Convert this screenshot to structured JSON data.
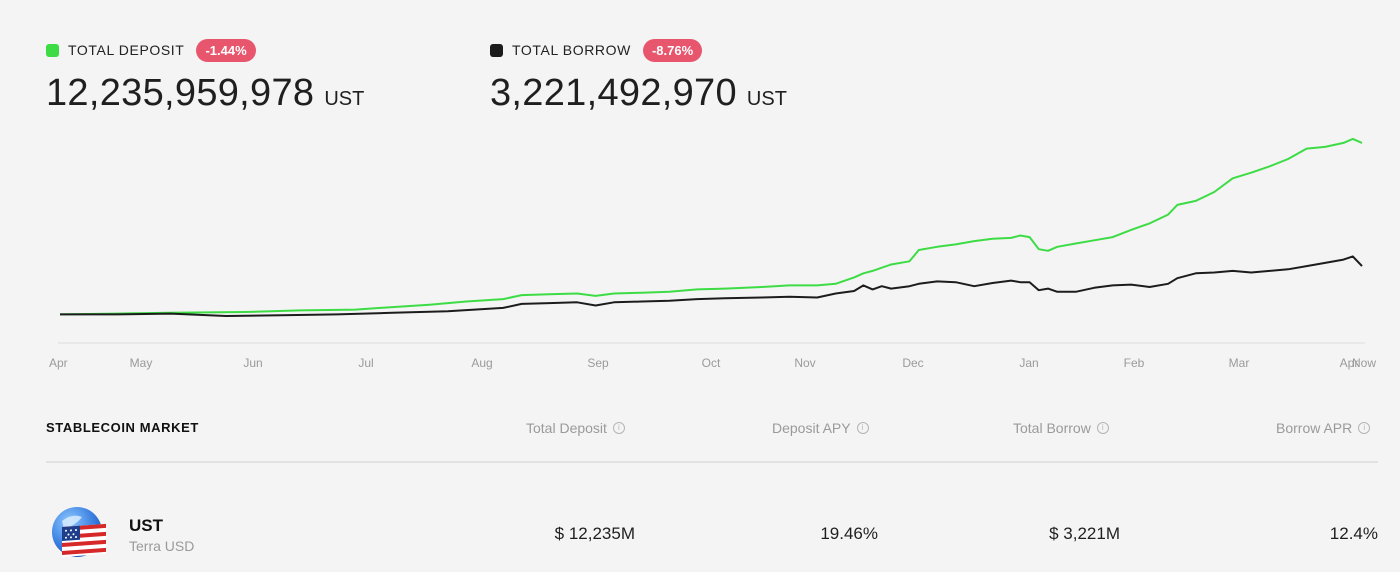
{
  "summary": {
    "deposit": {
      "label": "TOTAL DEPOSIT",
      "change": "-1.44%",
      "value": "12,235,959,978",
      "unit": "UST",
      "color": "#3ddc45"
    },
    "borrow": {
      "label": "TOTAL BORROW",
      "change": "-8.76%",
      "value": "3,221,492,970",
      "unit": "UST",
      "color": "#1c1c1c"
    }
  },
  "chart_data": {
    "type": "line",
    "x_tick_labels": [
      "Apr",
      "May",
      "Jun",
      "Jul",
      "Aug",
      "Sep",
      "Oct",
      "Nov",
      "Dec",
      "Jan",
      "Feb",
      "Mar",
      "Apr",
      "Now"
    ],
    "series": [
      {
        "color": "#3ddc45",
        "points": [
          [
            0,
            0.2
          ],
          [
            6,
            0.3
          ],
          [
            12,
            0.4
          ],
          [
            20,
            0.5
          ],
          [
            26,
            0.7
          ],
          [
            32,
            0.8
          ],
          [
            36,
            1.1
          ],
          [
            40,
            1.4
          ],
          [
            44,
            1.8
          ],
          [
            48,
            2.1
          ],
          [
            50,
            2.6
          ],
          [
            53,
            2.7
          ],
          [
            56,
            2.8
          ],
          [
            58,
            2.5
          ],
          [
            60,
            2.8
          ],
          [
            63,
            2.9
          ],
          [
            66,
            3.0
          ],
          [
            69,
            3.3
          ],
          [
            72,
            3.4
          ],
          [
            76,
            3.6
          ],
          [
            79,
            3.8
          ],
          [
            82,
            3.8
          ],
          [
            84,
            4.0
          ],
          [
            86,
            4.8
          ],
          [
            87,
            5.3
          ],
          [
            88,
            5.6
          ],
          [
            89,
            6.0
          ],
          [
            90,
            6.4
          ],
          [
            92,
            6.8
          ],
          [
            93,
            8.2
          ],
          [
            95,
            8.6
          ],
          [
            97,
            8.9
          ],
          [
            99,
            9.3
          ],
          [
            101,
            9.6
          ],
          [
            103,
            9.7
          ],
          [
            104,
            10.0
          ],
          [
            105,
            9.8
          ],
          [
            106,
            8.3
          ],
          [
            107,
            8.1
          ],
          [
            108,
            8.6
          ],
          [
            110,
            9.0
          ],
          [
            112,
            9.4
          ],
          [
            114,
            9.8
          ],
          [
            116,
            10.7
          ],
          [
            118,
            11.5
          ],
          [
            120,
            12.6
          ],
          [
            121,
            13.8
          ],
          [
            123,
            14.3
          ],
          [
            125,
            15.4
          ],
          [
            127,
            17.1
          ],
          [
            129,
            17.8
          ],
          [
            131,
            18.6
          ],
          [
            133,
            19.5
          ],
          [
            135,
            20.8
          ],
          [
            137,
            21.0
          ],
          [
            139,
            21.5
          ],
          [
            140,
            22.0
          ],
          [
            141,
            21.5
          ]
        ]
      },
      {
        "color": "#1c1c1c",
        "points": [
          [
            0,
            0.2
          ],
          [
            6,
            0.2
          ],
          [
            12,
            0.3
          ],
          [
            18,
            0.0
          ],
          [
            24,
            0.1
          ],
          [
            30,
            0.2
          ],
          [
            36,
            0.4
          ],
          [
            42,
            0.6
          ],
          [
            48,
            1.0
          ],
          [
            50,
            1.5
          ],
          [
            53,
            1.6
          ],
          [
            56,
            1.7
          ],
          [
            58,
            1.3
          ],
          [
            60,
            1.7
          ],
          [
            63,
            1.8
          ],
          [
            66,
            1.9
          ],
          [
            69,
            2.1
          ],
          [
            72,
            2.2
          ],
          [
            76,
            2.3
          ],
          [
            79,
            2.4
          ],
          [
            82,
            2.3
          ],
          [
            84,
            2.8
          ],
          [
            86,
            3.1
          ],
          [
            87,
            3.8
          ],
          [
            88,
            3.3
          ],
          [
            89,
            3.7
          ],
          [
            90,
            3.4
          ],
          [
            92,
            3.7
          ],
          [
            93,
            4.0
          ],
          [
            95,
            4.3
          ],
          [
            97,
            4.2
          ],
          [
            99,
            3.7
          ],
          [
            101,
            4.1
          ],
          [
            103,
            4.4
          ],
          [
            104,
            4.2
          ],
          [
            105,
            4.2
          ],
          [
            106,
            3.2
          ],
          [
            107,
            3.4
          ],
          [
            108,
            3.0
          ],
          [
            110,
            3.0
          ],
          [
            112,
            3.5
          ],
          [
            114,
            3.8
          ],
          [
            116,
            3.9
          ],
          [
            118,
            3.6
          ],
          [
            120,
            4.0
          ],
          [
            121,
            4.7
          ],
          [
            123,
            5.3
          ],
          [
            125,
            5.4
          ],
          [
            127,
            5.6
          ],
          [
            129,
            5.4
          ],
          [
            131,
            5.6
          ],
          [
            133,
            5.8
          ],
          [
            135,
            6.2
          ],
          [
            137,
            6.6
          ],
          [
            139,
            7.0
          ],
          [
            140,
            7.4
          ],
          [
            141,
            6.2
          ]
        ]
      }
    ]
  },
  "market": {
    "title": "STABLECOIN MARKET",
    "columns": [
      "Total Deposit",
      "Deposit APY",
      "Total Borrow",
      "Borrow APR"
    ],
    "rows": [
      {
        "symbol": "UST",
        "name": "Terra USD",
        "total_deposit": "$ 12,235M",
        "deposit_apy": "19.46%",
        "total_borrow": "$ 3,221M",
        "borrow_apr": "12.4%"
      }
    ]
  }
}
